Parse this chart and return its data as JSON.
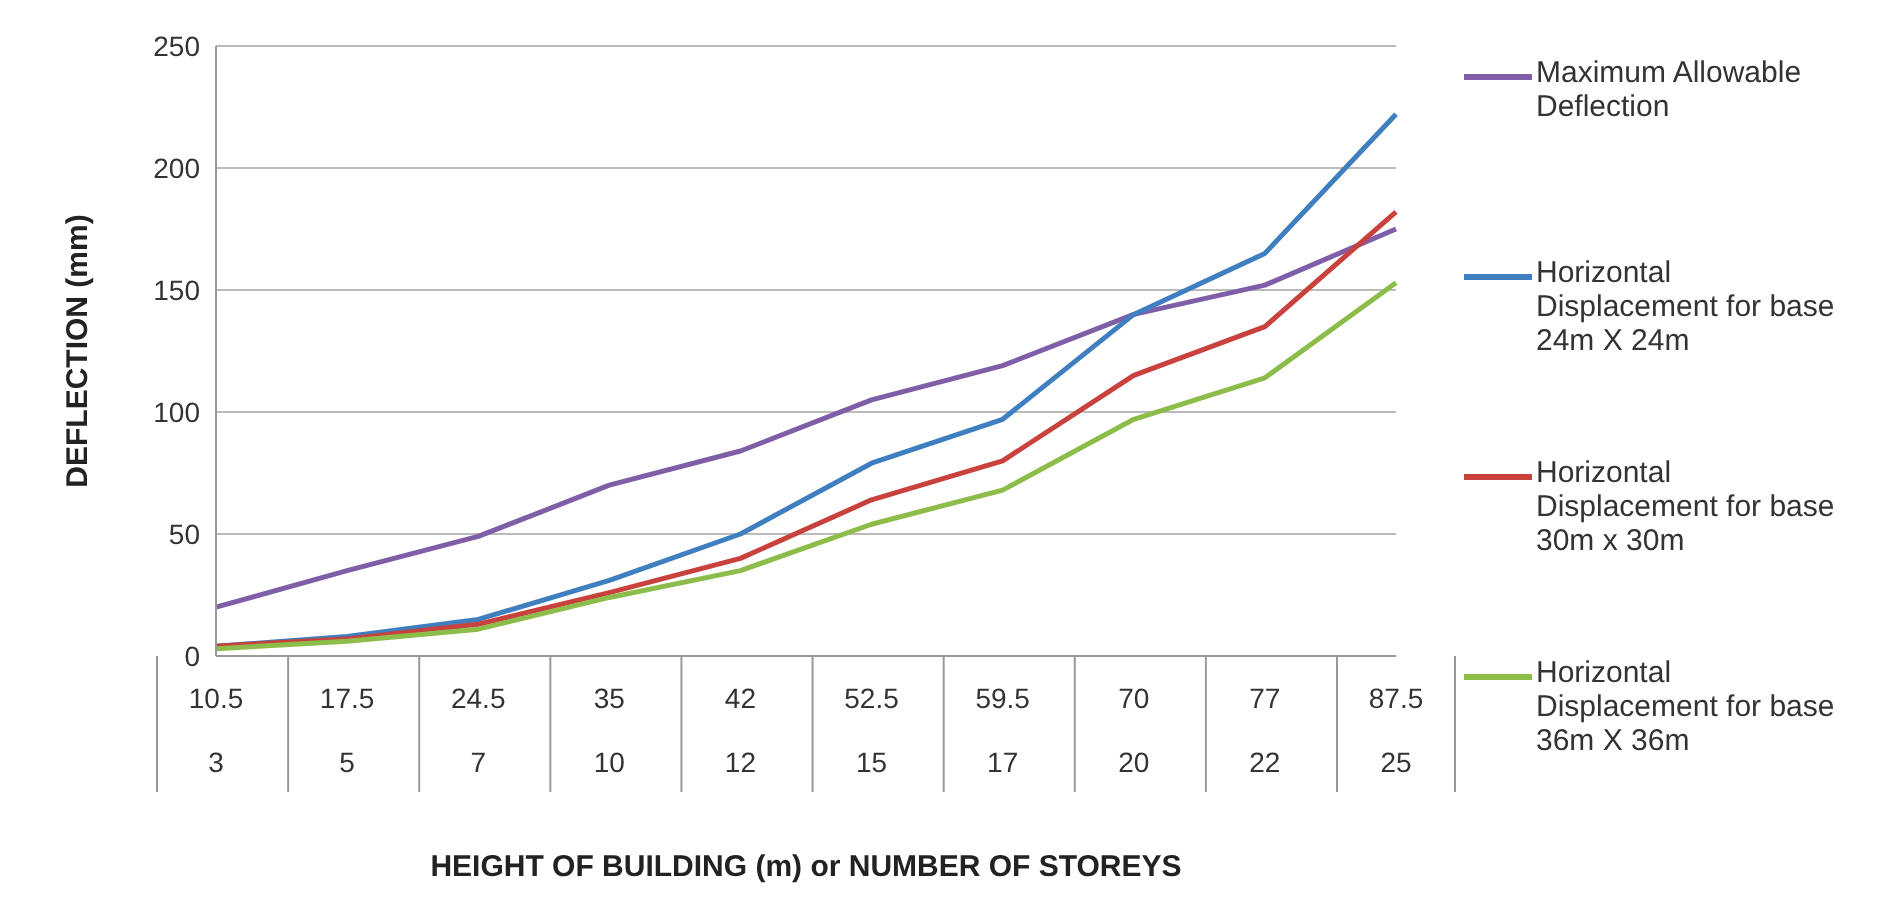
{
  "chart_data": {
    "type": "line",
    "xlabel": "HEIGHT OF  BUILDING (m) or NUMBER OF STOREYS",
    "ylabel": "DEFLECTION (mm)",
    "categories": [
      "10.5\n3",
      "17.5\n5",
      "24.5\n7",
      "35\n10",
      "42\n12",
      "52.5\n15",
      "59.5\n17",
      "70\n20",
      "77\n22",
      "87.5\n25"
    ],
    "series": [
      {
        "name": "Maximum Allowable Deflection",
        "color": "#7f5ea8",
        "values": [
          20,
          35,
          49,
          70,
          84,
          105,
          119,
          140,
          152,
          175
        ]
      },
      {
        "name": "Horizontal Displacement for base 24m X 24m",
        "color": "#3f7fc0",
        "values": [
          4,
          8,
          15,
          31,
          50,
          79,
          97,
          140,
          165,
          222
        ]
      },
      {
        "name": "Horizontal Displacement for base 30m x 30m",
        "color": "#c8413c",
        "values": [
          4,
          7,
          13,
          26,
          40,
          64,
          80,
          115,
          135,
          182
        ]
      },
      {
        "name": "Horizontal Displacement for base 36m X 36m",
        "color": "#8cbd4a",
        "values": [
          3,
          6,
          11,
          24,
          35,
          54,
          68,
          97,
          114,
          153
        ]
      }
    ],
    "ylim": [
      0,
      250
    ],
    "yticks": [
      0,
      50,
      100,
      150,
      200,
      250
    ],
    "grid": "y",
    "legend": "right",
    "marker": "none",
    "line_style": "solid"
  }
}
